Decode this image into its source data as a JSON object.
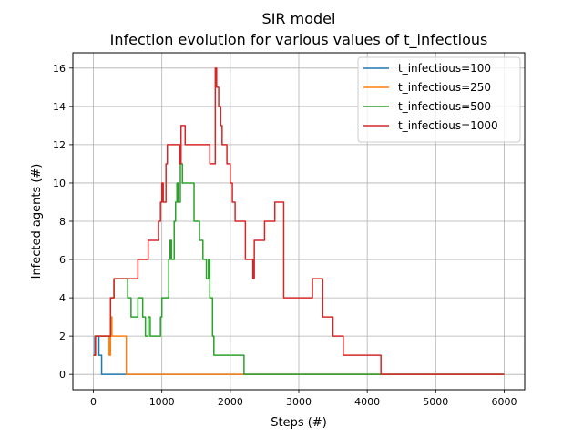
{
  "chart_data": {
    "type": "line",
    "title": "SIR model",
    "subtitle": "Infection evolution for various values of t_infectious",
    "xlabel": "Steps (#)",
    "ylabel": "Infected agents (#)",
    "xlim": [
      -300,
      6300
    ],
    "ylim": [
      -0.8,
      16.8
    ],
    "xticks": [
      0,
      1000,
      2000,
      3000,
      4000,
      5000,
      6000
    ],
    "yticks": [
      0,
      2,
      4,
      6,
      8,
      10,
      12,
      14,
      16
    ],
    "grid": true,
    "legend_position": "top-right",
    "series": [
      {
        "name": "t_infectious=100",
        "color": "#1f77b4",
        "points": [
          [
            0,
            1
          ],
          [
            20,
            1
          ],
          [
            20,
            2
          ],
          [
            80,
            2
          ],
          [
            80,
            1
          ],
          [
            120,
            1
          ],
          [
            120,
            0
          ],
          [
            6000,
            0
          ]
        ]
      },
      {
        "name": "t_infectious=250",
        "color": "#ff7f0e",
        "points": [
          [
            0,
            1
          ],
          [
            30,
            1
          ],
          [
            30,
            2
          ],
          [
            230,
            2
          ],
          [
            230,
            1
          ],
          [
            250,
            1
          ],
          [
            250,
            3
          ],
          [
            270,
            3
          ],
          [
            270,
            2
          ],
          [
            480,
            2
          ],
          [
            480,
            0
          ],
          [
            6000,
            0
          ]
        ]
      },
      {
        "name": "t_infectious=500",
        "color": "#2ca02c",
        "points": [
          [
            0,
            1
          ],
          [
            30,
            1
          ],
          [
            30,
            2
          ],
          [
            250,
            2
          ],
          [
            250,
            4
          ],
          [
            300,
            4
          ],
          [
            300,
            5
          ],
          [
            500,
            5
          ],
          [
            500,
            4
          ],
          [
            550,
            4
          ],
          [
            550,
            3
          ],
          [
            650,
            3
          ],
          [
            650,
            4
          ],
          [
            720,
            4
          ],
          [
            720,
            3
          ],
          [
            760,
            3
          ],
          [
            760,
            2
          ],
          [
            800,
            2
          ],
          [
            800,
            3
          ],
          [
            830,
            3
          ],
          [
            830,
            2
          ],
          [
            980,
            2
          ],
          [
            980,
            3
          ],
          [
            1000,
            3
          ],
          [
            1000,
            4
          ],
          [
            1100,
            4
          ],
          [
            1100,
            6
          ],
          [
            1120,
            6
          ],
          [
            1120,
            7
          ],
          [
            1140,
            7
          ],
          [
            1140,
            6
          ],
          [
            1180,
            6
          ],
          [
            1180,
            8
          ],
          [
            1200,
            8
          ],
          [
            1200,
            9
          ],
          [
            1220,
            9
          ],
          [
            1220,
            10
          ],
          [
            1240,
            10
          ],
          [
            1240,
            9
          ],
          [
            1270,
            9
          ],
          [
            1270,
            11
          ],
          [
            1300,
            11
          ],
          [
            1300,
            10
          ],
          [
            1470,
            10
          ],
          [
            1470,
            8
          ],
          [
            1550,
            8
          ],
          [
            1550,
            7
          ],
          [
            1600,
            7
          ],
          [
            1600,
            6
          ],
          [
            1650,
            6
          ],
          [
            1650,
            5
          ],
          [
            1680,
            5
          ],
          [
            1680,
            6
          ],
          [
            1700,
            6
          ],
          [
            1700,
            4
          ],
          [
            1740,
            4
          ],
          [
            1740,
            2
          ],
          [
            1760,
            2
          ],
          [
            1760,
            1
          ],
          [
            2200,
            1
          ],
          [
            2200,
            0
          ],
          [
            6000,
            0
          ]
        ]
      },
      {
        "name": "t_infectious=1000",
        "color": "#d62728",
        "points": [
          [
            0,
            1
          ],
          [
            30,
            1
          ],
          [
            30,
            2
          ],
          [
            250,
            2
          ],
          [
            250,
            4
          ],
          [
            300,
            4
          ],
          [
            300,
            5
          ],
          [
            650,
            5
          ],
          [
            650,
            6
          ],
          [
            800,
            6
          ],
          [
            800,
            7
          ],
          [
            950,
            7
          ],
          [
            950,
            8
          ],
          [
            980,
            8
          ],
          [
            980,
            9
          ],
          [
            1000,
            9
          ],
          [
            1000,
            10
          ],
          [
            1020,
            10
          ],
          [
            1020,
            9
          ],
          [
            1060,
            9
          ],
          [
            1060,
            11
          ],
          [
            1080,
            11
          ],
          [
            1080,
            12
          ],
          [
            1260,
            12
          ],
          [
            1260,
            11
          ],
          [
            1280,
            11
          ],
          [
            1280,
            13
          ],
          [
            1340,
            13
          ],
          [
            1340,
            12
          ],
          [
            1700,
            12
          ],
          [
            1700,
            11
          ],
          [
            1780,
            11
          ],
          [
            1780,
            16
          ],
          [
            1800,
            16
          ],
          [
            1800,
            15
          ],
          [
            1830,
            15
          ],
          [
            1830,
            14
          ],
          [
            1860,
            14
          ],
          [
            1860,
            13
          ],
          [
            1880,
            13
          ],
          [
            1880,
            12
          ],
          [
            1950,
            12
          ],
          [
            1950,
            11
          ],
          [
            2000,
            11
          ],
          [
            2000,
            10
          ],
          [
            2030,
            10
          ],
          [
            2030,
            9
          ],
          [
            2070,
            9
          ],
          [
            2070,
            8
          ],
          [
            2220,
            8
          ],
          [
            2220,
            6
          ],
          [
            2330,
            6
          ],
          [
            2330,
            5
          ],
          [
            2350,
            5
          ],
          [
            2350,
            7
          ],
          [
            2500,
            7
          ],
          [
            2500,
            8
          ],
          [
            2650,
            8
          ],
          [
            2650,
            9
          ],
          [
            2780,
            9
          ],
          [
            2780,
            4
          ],
          [
            3200,
            4
          ],
          [
            3200,
            5
          ],
          [
            3350,
            5
          ],
          [
            3350,
            3
          ],
          [
            3500,
            3
          ],
          [
            3500,
            2
          ],
          [
            3650,
            2
          ],
          [
            3650,
            1
          ],
          [
            4200,
            1
          ],
          [
            4200,
            0
          ],
          [
            6000,
            0
          ]
        ]
      }
    ]
  }
}
